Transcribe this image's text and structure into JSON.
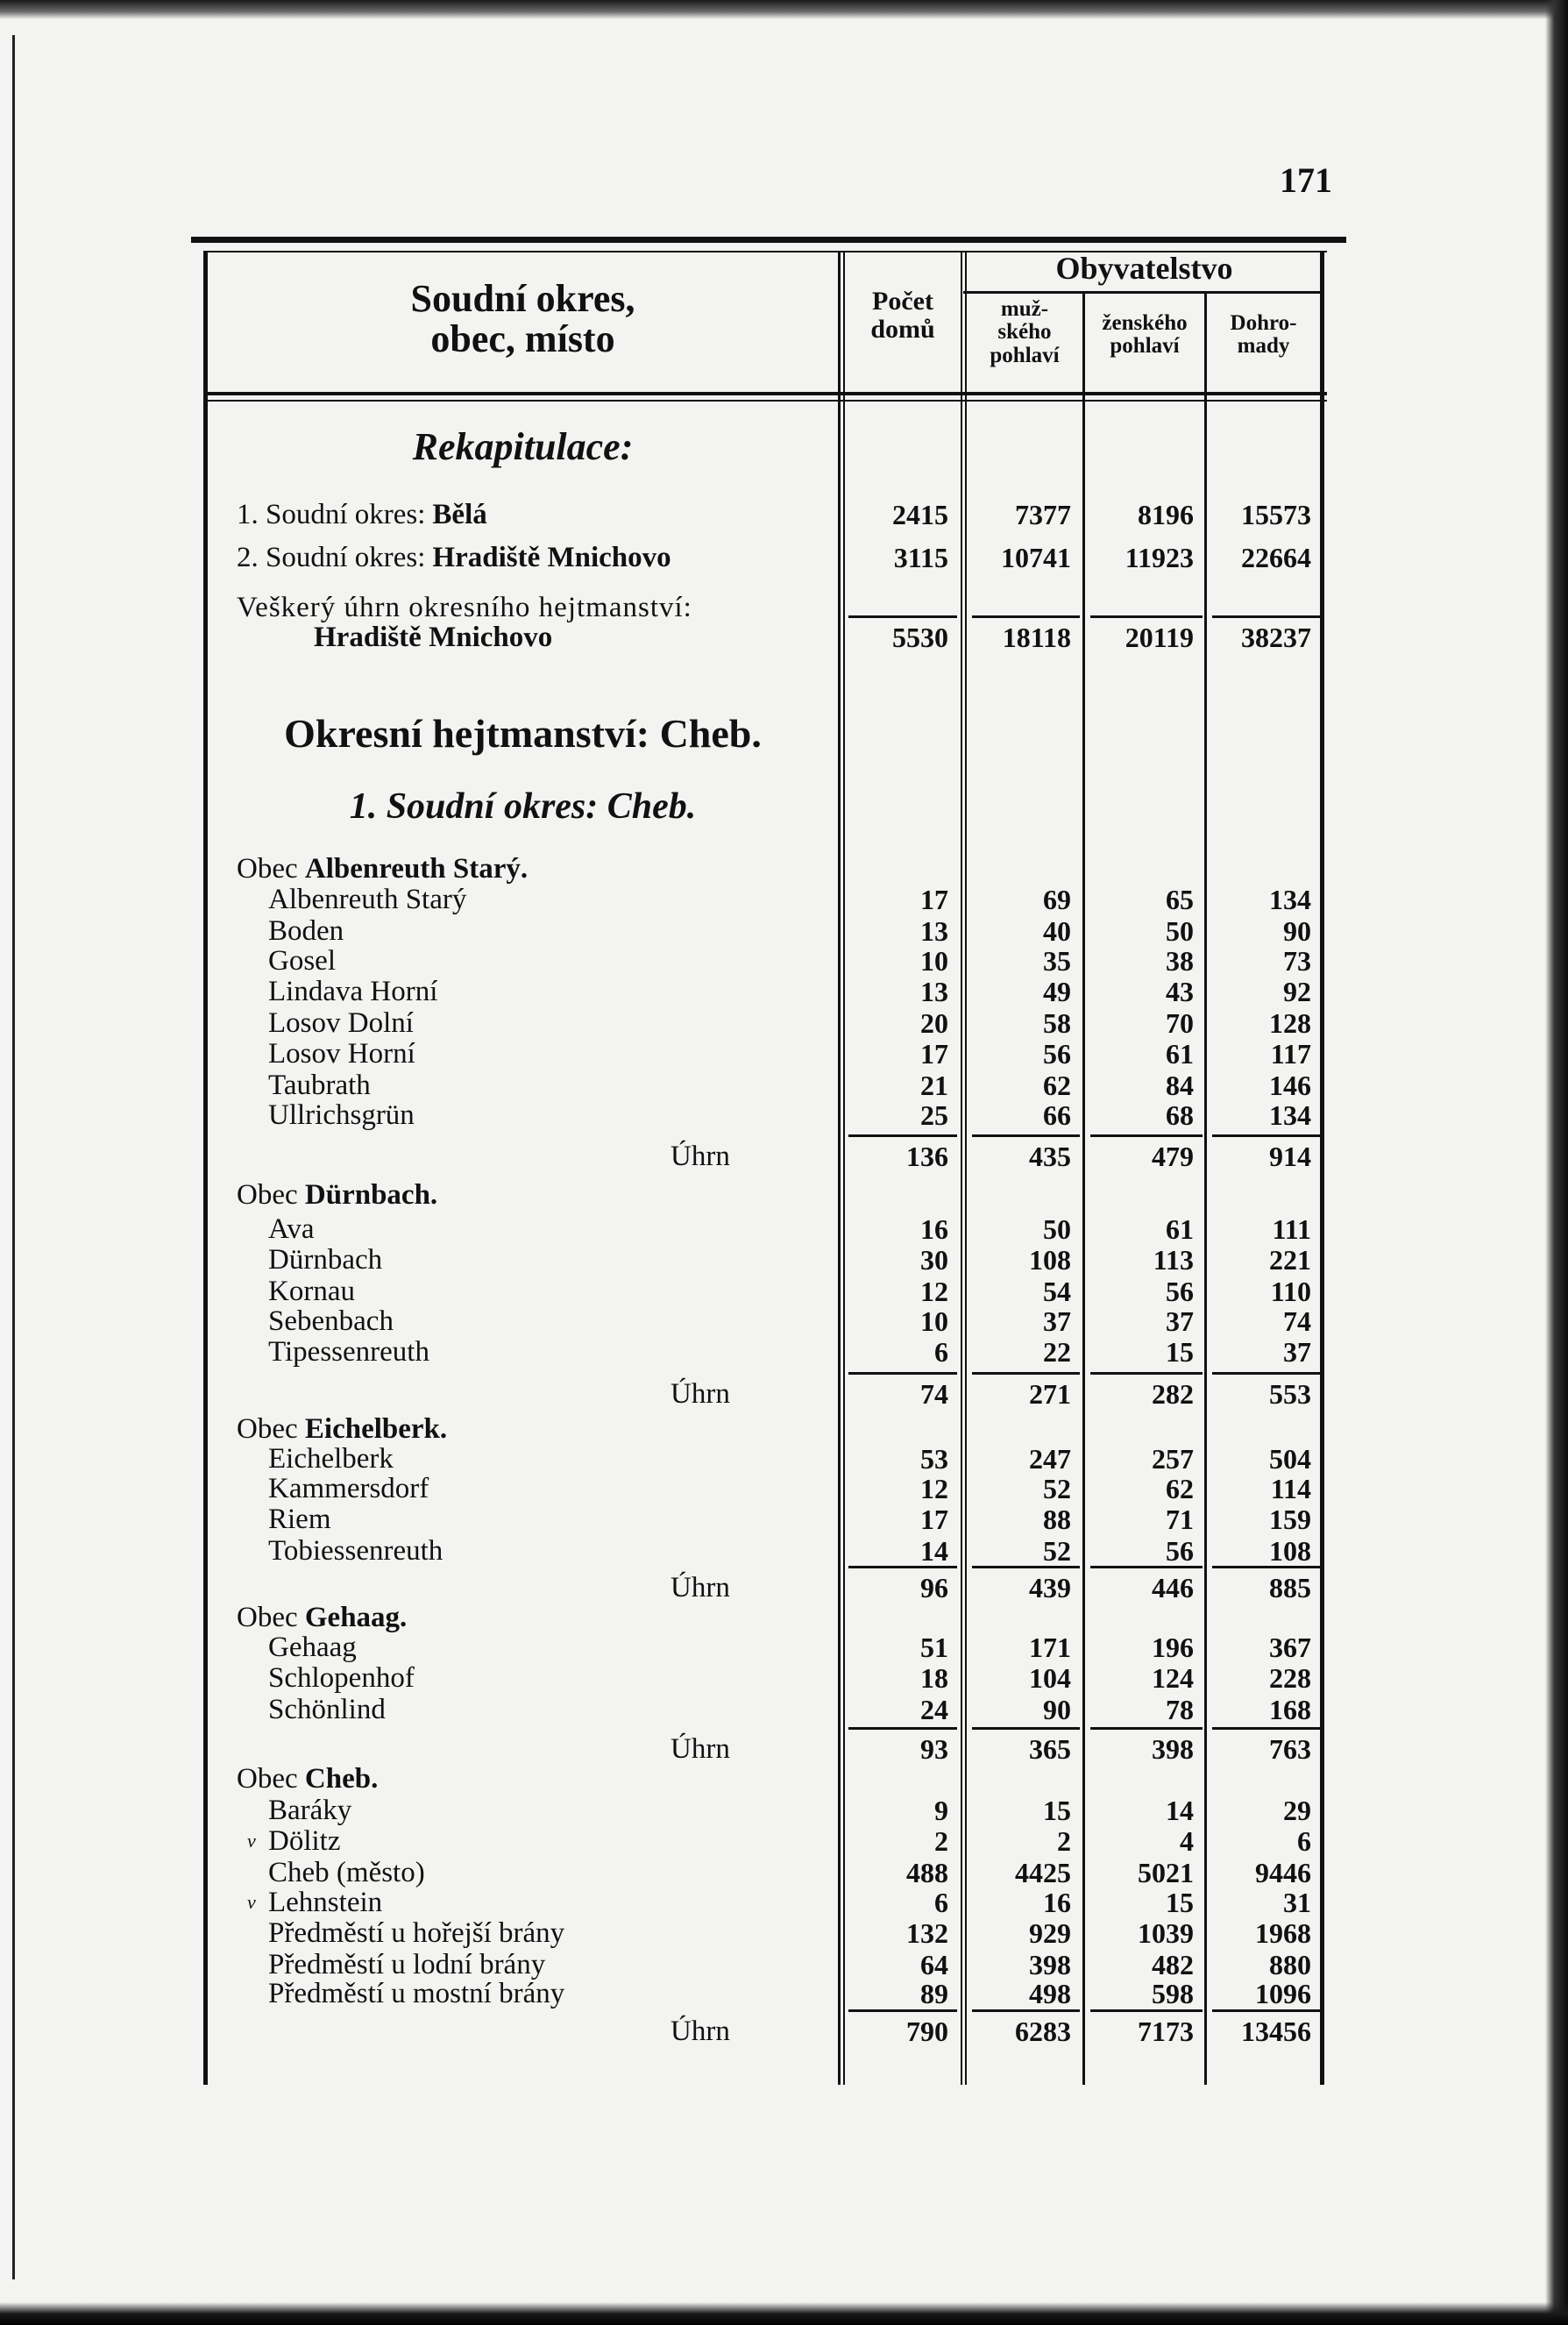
{
  "page_number": "171",
  "header": {
    "place_col": [
      "Soudní okres,",
      "obec, místo"
    ],
    "houses_col": [
      "Počet",
      "domů"
    ],
    "population": "Obyvatelstvo",
    "male_col": [
      "muž-",
      "ského",
      "pohlaví"
    ],
    "female_col": [
      "ženského",
      "pohlaví"
    ],
    "total_col": [
      "Dohro-",
      "mady"
    ]
  },
  "headings": {
    "recap": "Rekapitulace:",
    "district_office": "Okresní hejtmanství: Cheb.",
    "court_district": "1. Soudní okres: Cheb."
  },
  "recap_rows": [
    {
      "label": "1. Soudní okres: ",
      "label_bold": "Bělá",
      "values": [
        "2415",
        "7377",
        "8196",
        "15573"
      ]
    },
    {
      "label": "2. Soudní okres: ",
      "label_bold": "Hradiště Mnichovo",
      "values": [
        "3115",
        "10741",
        "11923",
        "22664"
      ]
    }
  ],
  "recap_total": {
    "line1": "Veškerý úhrn okresního hejtmanství:",
    "line2": "Hradiště Mnichovo",
    "values": [
      "5530",
      "18118",
      "20119",
      "38237"
    ]
  },
  "total_label": "Úhrn",
  "groups": [
    {
      "prefix": "Obec ",
      "name": "Albenreuth Starý.",
      "items": [
        {
          "name": "Albenreuth Starý",
          "values": [
            "17",
            "69",
            "65",
            "134"
          ]
        },
        {
          "name": "Boden",
          "values": [
            "13",
            "40",
            "50",
            "90"
          ]
        },
        {
          "name": "Gosel",
          "values": [
            "10",
            "35",
            "38",
            "73"
          ]
        },
        {
          "name": "Lindava Horní",
          "values": [
            "13",
            "49",
            "43",
            "92"
          ]
        },
        {
          "name": "Losov Dolní",
          "values": [
            "20",
            "58",
            "70",
            "128"
          ]
        },
        {
          "name": "Losov Horní",
          "values": [
            "17",
            "56",
            "61",
            "117"
          ]
        },
        {
          "name": "Taubrath",
          "values": [
            "21",
            "62",
            "84",
            "146"
          ]
        },
        {
          "name": "Ullrichsgrün",
          "values": [
            "25",
            "66",
            "68",
            "134"
          ]
        }
      ],
      "total": [
        "136",
        "435",
        "479",
        "914"
      ]
    },
    {
      "prefix": "Obec ",
      "name": "Dürnbach.",
      "items": [
        {
          "name": "Ava",
          "values": [
            "16",
            "50",
            "61",
            "111"
          ]
        },
        {
          "name": "Dürnbach",
          "values": [
            "30",
            "108",
            "113",
            "221"
          ]
        },
        {
          "name": "Kornau",
          "values": [
            "12",
            "54",
            "56",
            "110"
          ]
        },
        {
          "name": "Sebenbach",
          "values": [
            "10",
            "37",
            "37",
            "74"
          ]
        },
        {
          "name": "Tipessenreuth",
          "values": [
            "6",
            "22",
            "15",
            "37"
          ]
        }
      ],
      "total": [
        "74",
        "271",
        "282",
        "553"
      ]
    },
    {
      "prefix": "Obec ",
      "name": "Eichelberk.",
      "items": [
        {
          "name": "Eichelberk",
          "values": [
            "53",
            "247",
            "257",
            "504"
          ]
        },
        {
          "name": "Kammersdorf",
          "values": [
            "12",
            "52",
            "62",
            "114"
          ]
        },
        {
          "name": "Riem",
          "values": [
            "17",
            "88",
            "71",
            "159"
          ]
        },
        {
          "name": "Tobiessenreuth",
          "values": [
            "14",
            "52",
            "56",
            "108"
          ]
        }
      ],
      "total": [
        "96",
        "439",
        "446",
        "885"
      ]
    },
    {
      "prefix": "Obec ",
      "name": "Gehaag.",
      "items": [
        {
          "name": "Gehaag",
          "values": [
            "51",
            "171",
            "196",
            "367"
          ]
        },
        {
          "name": "Schlopenhof",
          "values": [
            "18",
            "104",
            "124",
            "228"
          ]
        },
        {
          "name": "Schönlind",
          "values": [
            "24",
            "90",
            "78",
            "168"
          ]
        }
      ],
      "total": [
        "93",
        "365",
        "398",
        "763"
      ]
    },
    {
      "prefix": "Obec ",
      "name": "Cheb.",
      "items": [
        {
          "name": "Baráky",
          "values": [
            "9",
            "15",
            "14",
            "29"
          ]
        },
        {
          "name": "Dölitz",
          "mark": "v",
          "values": [
            "2",
            "2",
            "4",
            "6"
          ]
        },
        {
          "name": "Cheb (město)",
          "values": [
            "488",
            "4425",
            "5021",
            "9446"
          ]
        },
        {
          "name": "Lehnstein",
          "mark": "v",
          "values": [
            "6",
            "16",
            "15",
            "31"
          ]
        },
        {
          "name": "Předměstí u hořejší brány",
          "values": [
            "132",
            "929",
            "1039",
            "1968"
          ]
        },
        {
          "name": "Předměstí u lodní brány",
          "values": [
            "64",
            "398",
            "482",
            "880"
          ]
        },
        {
          "name": "Předměstí u mostní brány",
          "values": [
            "89",
            "498",
            "598",
            "1096"
          ]
        }
      ],
      "total": [
        "790",
        "6283",
        "7173",
        "13456"
      ]
    }
  ]
}
